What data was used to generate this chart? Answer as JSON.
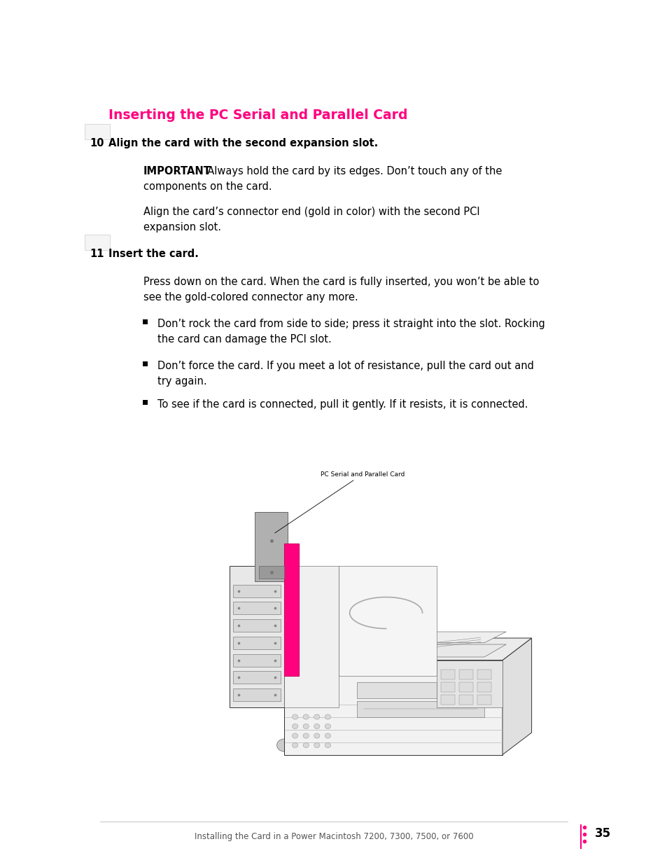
{
  "bg_color": "#ffffff",
  "page_width": 9.54,
  "page_height": 12.35,
  "title": "Inserting the PC Serial and Parallel Card",
  "title_color": "#FF007F",
  "title_fontsize": 13.5,
  "step_fontsize": 10.5,
  "body_fontsize": 10.5,
  "footer_text": "Installing the Card in a Power Macintosh 7200, 7300, 7500, or 7600",
  "footer_page": "35",
  "footer_dot_color": "#FF007F",
  "magenta": "#FF007F",
  "black": "#000000",
  "gray_line": "#999999",
  "dark_gray": "#444444",
  "mid_gray": "#888888",
  "light_gray": "#cccccc",
  "very_light_gray": "#eeeeee"
}
